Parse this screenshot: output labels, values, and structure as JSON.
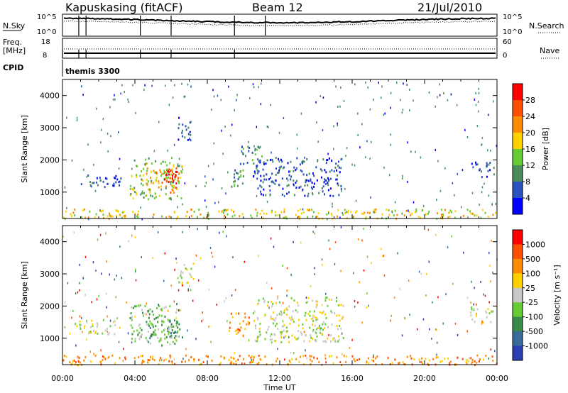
{
  "header": {
    "station": "Kapuskasing (fitACF)",
    "beam": "Beam 12",
    "date": "21/Jul/2010"
  },
  "aux_panels": {
    "nsky_label": "N.Sky",
    "nsearch_label": "N.Search",
    "freq_label_top": "Freq.",
    "freq_label_unit": "[MHz]",
    "nave_label": "Nave",
    "cpid_label": "CPID",
    "cpid_text": "themis 3300",
    "noise_ticks": [
      "10^5",
      "10^0"
    ],
    "noise_right_ticks": [
      "10^5",
      "10^0"
    ],
    "freq_ticks": [
      "18",
      "8"
    ],
    "nave_ticks": [
      "60",
      "0"
    ]
  },
  "colors": {
    "power": [
      "#0000ff",
      "#2a52be",
      "#4a8c5a",
      "#66cc33",
      "#ffd000",
      "#ff8c00",
      "#ff5000",
      "#ff0000"
    ],
    "velocity": [
      "#2a3fb0",
      "#3a6a9a",
      "#3a8a4a",
      "#66cc33",
      "#c8c8c8",
      "#ffd000",
      "#ff8c00",
      "#ff5000",
      "#ff0000"
    ]
  },
  "chart_data": [
    {
      "type": "heatmap",
      "name": "power",
      "ylabel": "Slant Range [km]",
      "xlabel": "",
      "xlim": [
        0,
        24
      ],
      "ylim": [
        180,
        4500
      ],
      "yticks": [
        "1000",
        "2000",
        "3000",
        "4000"
      ],
      "colorbar_label": "Power [dB]",
      "colorbar_ticks": [
        "4",
        "8",
        "12",
        "16",
        "20",
        "24",
        "28"
      ],
      "regions": [
        {
          "x": [
            1.0,
            3.2
          ],
          "y": [
            1150,
            1600
          ],
          "level": 1
        },
        {
          "x": [
            3.7,
            6.6
          ],
          "y": [
            800,
            2100
          ],
          "level": 3
        },
        {
          "x": [
            4.6,
            6.4
          ],
          "y": [
            1000,
            1800
          ],
          "level": 5
        },
        {
          "x": [
            5.6,
            6.3
          ],
          "y": [
            1300,
            1700
          ],
          "level": 7
        },
        {
          "x": [
            6.3,
            7.1
          ],
          "y": [
            2600,
            3400
          ],
          "level": 1
        },
        {
          "x": [
            9.3,
            10.0
          ],
          "y": [
            1200,
            1800
          ],
          "level": 2
        },
        {
          "x": [
            9.8,
            11.2
          ],
          "y": [
            1900,
            2500
          ],
          "level": 2
        },
        {
          "x": [
            10.5,
            15.5
          ],
          "y": [
            900,
            2100
          ],
          "level": 1
        },
        {
          "x": [
            22.5,
            23.8
          ],
          "y": [
            1500,
            2000
          ],
          "level": 1
        },
        {
          "x": [
            0.0,
            24.0
          ],
          "y": [
            200,
            500
          ],
          "level": 4
        }
      ]
    },
    {
      "type": "heatmap",
      "name": "velocity",
      "ylabel": "Slant Range [km]",
      "xlabel": "Time UT",
      "xlim": [
        0,
        24
      ],
      "ylim": [
        180,
        4500
      ],
      "xticks": [
        "00:00",
        "04:00",
        "08:00",
        "12:00",
        "16:00",
        "20:00",
        "00:00"
      ],
      "yticks": [
        "1000",
        "2000",
        "3000",
        "4000"
      ],
      "colorbar_label": "Velocity [m s⁻¹]",
      "colorbar_ticks": [
        "1000",
        "500",
        "100",
        "25",
        "-25",
        "-100",
        "-500",
        "-1000"
      ],
      "regions": [
        {
          "x": [
            0.5,
            3.2
          ],
          "y": [
            1150,
            1600
          ],
          "level": 4
        },
        {
          "x": [
            3.7,
            6.6
          ],
          "y": [
            800,
            2100
          ],
          "level": 3
        },
        {
          "x": [
            4.6,
            6.4
          ],
          "y": [
            1000,
            1800
          ],
          "level": 2
        },
        {
          "x": [
            9.0,
            10.3
          ],
          "y": [
            1100,
            1800
          ],
          "level": 6
        },
        {
          "x": [
            10.5,
            15.5
          ],
          "y": [
            900,
            2300
          ],
          "level": 4
        },
        {
          "x": [
            6.4,
            7.2
          ],
          "y": [
            2600,
            3400
          ],
          "level": 4
        },
        {
          "x": [
            22.5,
            23.8
          ],
          "y": [
            1500,
            2000
          ],
          "level": 4
        },
        {
          "x": [
            0.0,
            24.0
          ],
          "y": [
            200,
            500
          ],
          "level": 6
        }
      ]
    }
  ]
}
